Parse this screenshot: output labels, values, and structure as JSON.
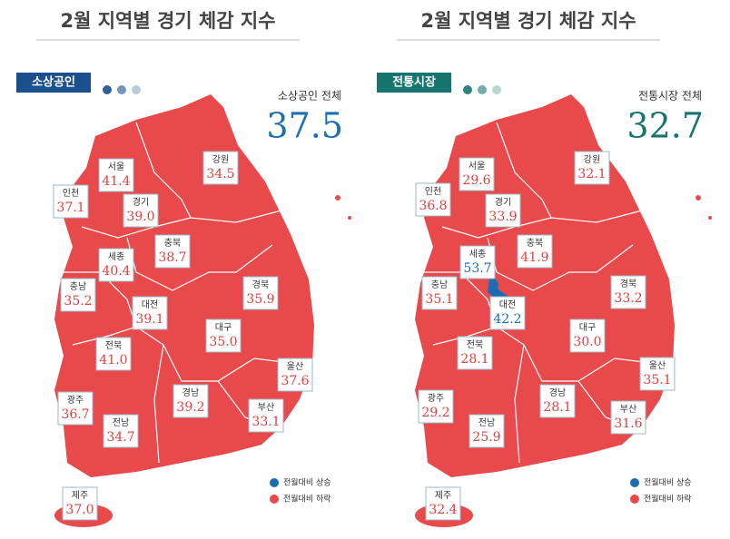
{
  "panels": [
    {
      "title": "2월 지역별 경기 체감 지수",
      "tag": "소상공인",
      "tag_color": "#1b4f8e",
      "total_label": "소상공인 전체",
      "total": "37.5",
      "total_color": "#1f6fb5",
      "regions": [
        {
          "name": "서울",
          "value": "41.4",
          "color": "#e2403f"
        },
        {
          "name": "인천",
          "value": "37.1",
          "color": "#e2403f"
        },
        {
          "name": "경기",
          "value": "39.0",
          "color": "#e2403f"
        },
        {
          "name": "강원",
          "value": "34.5",
          "color": "#e2403f"
        },
        {
          "name": "세종",
          "value": "40.4",
          "color": "#e2403f"
        },
        {
          "name": "충북",
          "value": "38.7",
          "color": "#e2403f"
        },
        {
          "name": "충남",
          "value": "35.2",
          "color": "#e2403f"
        },
        {
          "name": "대전",
          "value": "39.1",
          "color": "#e2403f"
        },
        {
          "name": "경북",
          "value": "35.9",
          "color": "#e2403f"
        },
        {
          "name": "대구",
          "value": "35.0",
          "color": "#e2403f"
        },
        {
          "name": "전북",
          "value": "41.0",
          "color": "#e2403f"
        },
        {
          "name": "울산",
          "value": "37.6",
          "color": "#e2403f"
        },
        {
          "name": "광주",
          "value": "36.7",
          "color": "#e2403f"
        },
        {
          "name": "경남",
          "value": "39.2",
          "color": "#e2403f"
        },
        {
          "name": "부산",
          "value": "33.1",
          "color": "#e2403f"
        },
        {
          "name": "전남",
          "value": "34.7",
          "color": "#e2403f"
        },
        {
          "name": "제주",
          "value": "37.0",
          "color": "#e2403f"
        }
      ],
      "legend": [
        {
          "label": "전월대비 상승",
          "color": "#1a6cb3"
        },
        {
          "label": "전월대비 하락",
          "color": "#e8494b"
        }
      ]
    },
    {
      "title": "2월 지역별 경기 체감 지수",
      "tag": "전통시장",
      "tag_color": "#17756f",
      "total_label": "전통시장 전체",
      "total": "32.7",
      "total_color": "#17756f",
      "regions": [
        {
          "name": "서울",
          "value": "29.6",
          "color": "#e2403f"
        },
        {
          "name": "인천",
          "value": "36.8",
          "color": "#e2403f"
        },
        {
          "name": "경기",
          "value": "33.9",
          "color": "#e2403f"
        },
        {
          "name": "강원",
          "value": "32.1",
          "color": "#e2403f"
        },
        {
          "name": "세종",
          "value": "53.7",
          "color": "#1a6cb3"
        },
        {
          "name": "충북",
          "value": "41.9",
          "color": "#e2403f"
        },
        {
          "name": "충남",
          "value": "35.1",
          "color": "#e2403f"
        },
        {
          "name": "대전",
          "value": "42.2",
          "color": "#1a6cb3"
        },
        {
          "name": "경북",
          "value": "33.2",
          "color": "#e2403f"
        },
        {
          "name": "대구",
          "value": "30.0",
          "color": "#e2403f"
        },
        {
          "name": "전북",
          "value": "28.1",
          "color": "#e2403f"
        },
        {
          "name": "울산",
          "value": "35.1",
          "color": "#e2403f"
        },
        {
          "name": "광주",
          "value": "29.2",
          "color": "#e2403f"
        },
        {
          "name": "경남",
          "value": "28.1",
          "color": "#e2403f"
        },
        {
          "name": "부산",
          "value": "31.6",
          "color": "#e2403f"
        },
        {
          "name": "전남",
          "value": "25.9",
          "color": "#e2403f"
        },
        {
          "name": "제주",
          "value": "32.4",
          "color": "#e2403f"
        }
      ],
      "legend": [
        {
          "label": "전월대비 상승",
          "color": "#1a6cb3"
        },
        {
          "label": "전월대비 하락",
          "color": "#e8494b"
        }
      ]
    }
  ]
}
